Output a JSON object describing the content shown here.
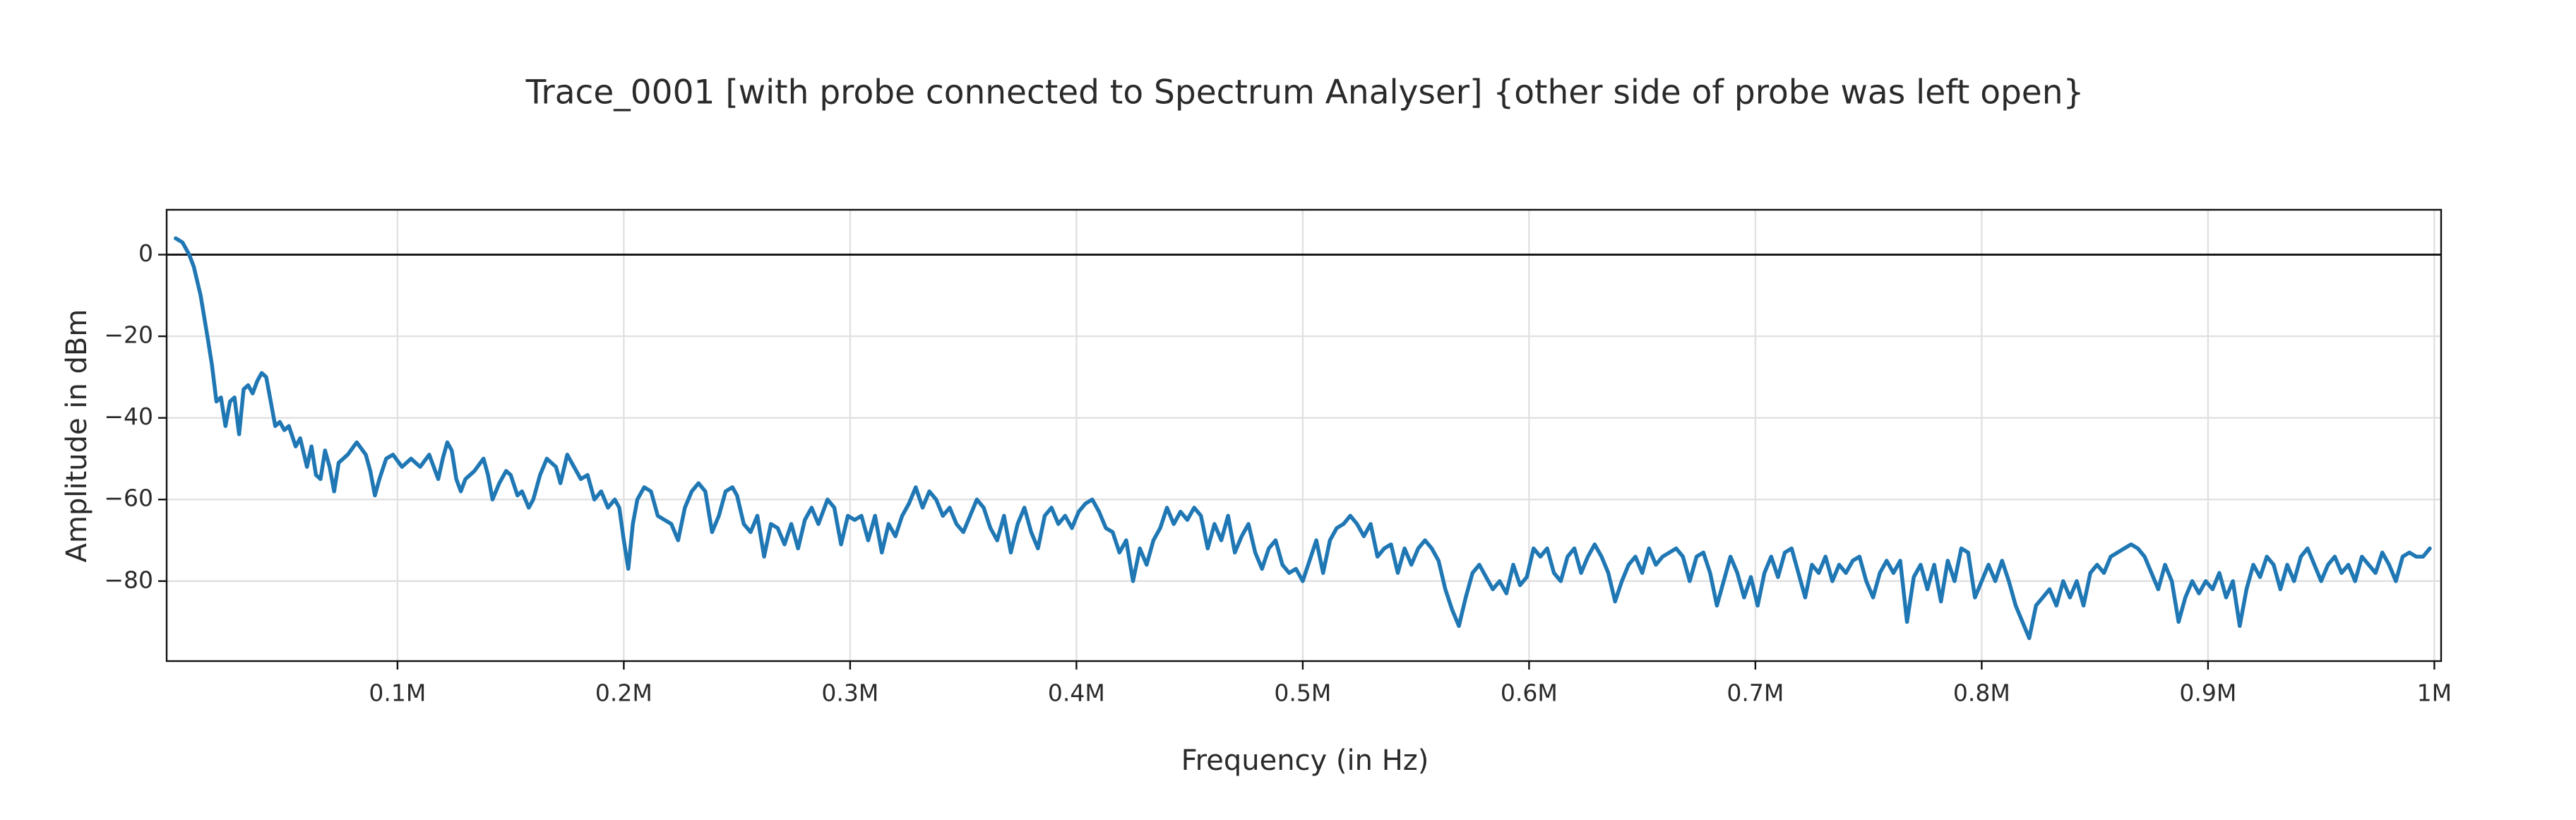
{
  "chart_data": {
    "type": "line",
    "title": "Trace_0001 [with probe connected to Spectrum Analyser] {other side of probe was left open}",
    "x_label": "Frequency (in Hz)",
    "y_label": "Amplitude in dBm",
    "xlim": [
      -2000,
      1003000
    ],
    "ylim": [
      -99.6,
      11
    ],
    "xticks": [
      {
        "value": 100000,
        "label": "0.1M"
      },
      {
        "value": 200000,
        "label": "0.2M"
      },
      {
        "value": 300000,
        "label": "0.3M"
      },
      {
        "value": 400000,
        "label": "0.4M"
      },
      {
        "value": 500000,
        "label": "0.5M"
      },
      {
        "value": 600000,
        "label": "0.6M"
      },
      {
        "value": 700000,
        "label": "0.7M"
      },
      {
        "value": 800000,
        "label": "0.8M"
      },
      {
        "value": 900000,
        "label": "0.9M"
      },
      {
        "value": 1000000,
        "label": "1M"
      }
    ],
    "yticks": [
      {
        "value": -80,
        "label": "−80"
      },
      {
        "value": -60,
        "label": "−60"
      },
      {
        "value": -40,
        "label": "−40"
      },
      {
        "value": -20,
        "label": "−20"
      },
      0
    ],
    "grid": true,
    "zeroline": true,
    "series": [
      {
        "color": "#1f77b4",
        "x": [
          2000,
          5000,
          8000,
          10000,
          13000,
          16000,
          18000,
          20000,
          22000,
          24000,
          26000,
          28000,
          30000,
          32000,
          34000,
          36000,
          38000,
          40000,
          42000,
          44000,
          46000,
          48000,
          50000,
          52000,
          55000,
          57000,
          60000,
          62000,
          64000,
          66000,
          68000,
          70000,
          72000,
          74000,
          78000,
          82000,
          86000,
          88000,
          90000,
          92000,
          95000,
          98000,
          102000,
          106000,
          110000,
          114000,
          118000,
          120000,
          122000,
          124000,
          126000,
          128000,
          130000,
          134000,
          138000,
          140000,
          142000,
          145000,
          148000,
          150000,
          153000,
          155000,
          158000,
          160000,
          163000,
          166000,
          170000,
          172000,
          175000,
          178000,
          181000,
          184000,
          187000,
          190000,
          193000,
          196000,
          198000,
          200000,
          202000,
          204000,
          206000,
          209000,
          212000,
          215000,
          218000,
          221000,
          224000,
          227000,
          230000,
          233000,
          236000,
          239000,
          242000,
          245000,
          248000,
          250000,
          253000,
          256000,
          259000,
          262000,
          265000,
          268000,
          271000,
          274000,
          277000,
          280000,
          283000,
          286000,
          290000,
          293000,
          296000,
          299000,
          302000,
          305000,
          308000,
          311000,
          314000,
          317000,
          320000,
          323000,
          326000,
          329000,
          332000,
          335000,
          338000,
          341000,
          344000,
          347000,
          350000,
          353000,
          356000,
          359000,
          362000,
          365000,
          368000,
          371000,
          374000,
          377000,
          380000,
          383000,
          386000,
          389000,
          392000,
          395000,
          398000,
          401000,
          404000,
          407000,
          410000,
          413000,
          416000,
          419000,
          422000,
          425000,
          428000,
          431000,
          434000,
          437000,
          440000,
          443000,
          446000,
          449000,
          452000,
          455000,
          458000,
          461000,
          464000,
          467000,
          470000,
          473000,
          476000,
          479000,
          482000,
          485000,
          488000,
          491000,
          494000,
          497000,
          500000,
          503000,
          506000,
          509000,
          512000,
          515000,
          518000,
          521000,
          524000,
          527000,
          530000,
          533000,
          536000,
          539000,
          542000,
          545000,
          548000,
          551000,
          554000,
          557000,
          560000,
          563000,
          566000,
          569000,
          572000,
          575000,
          578000,
          581000,
          584000,
          587000,
          590000,
          593000,
          596000,
          599000,
          602000,
          605000,
          608000,
          611000,
          614000,
          617000,
          620000,
          623000,
          626000,
          629000,
          632000,
          635000,
          638000,
          641000,
          644000,
          647000,
          650000,
          653000,
          656000,
          659000,
          662000,
          665000,
          668000,
          671000,
          674000,
          677000,
          680000,
          683000,
          686000,
          689000,
          692000,
          695000,
          698000,
          701000,
          704000,
          707000,
          710000,
          713000,
          716000,
          719000,
          722000,
          725000,
          728000,
          731000,
          734000,
          737000,
          740000,
          743000,
          746000,
          749000,
          752000,
          755000,
          758000,
          761000,
          764000,
          767000,
          770000,
          773000,
          776000,
          779000,
          782000,
          785000,
          788000,
          791000,
          794000,
          797000,
          800000,
          803000,
          806000,
          809000,
          812000,
          815000,
          818000,
          821000,
          824000,
          827000,
          830000,
          833000,
          836000,
          839000,
          842000,
          845000,
          848000,
          851000,
          854000,
          857000,
          860000,
          863000,
          866000,
          869000,
          872000,
          875000,
          878000,
          881000,
          884000,
          887000,
          890000,
          893000,
          896000,
          899000,
          902000,
          905000,
          908000,
          911000,
          914000,
          917000,
          920000,
          923000,
          926000,
          929000,
          932000,
          935000,
          938000,
          941000,
          944000,
          947000,
          950000,
          953000,
          956000,
          959000,
          962000,
          965000,
          968000,
          971000,
          974000,
          977000,
          980000,
          983000,
          986000,
          989000,
          992000,
          995000,
          998000
        ],
        "values": [
          4,
          3,
          0,
          -3,
          -10,
          -20,
          -27,
          -36,
          -35,
          -42,
          -36,
          -35,
          -44,
          -33,
          -32,
          -34,
          -31,
          -29,
          -30,
          -36,
          -42,
          -41,
          -43,
          -42,
          -47,
          -45,
          -52,
          -47,
          -54,
          -55,
          -48,
          -52,
          -58,
          -51,
          -49,
          -46,
          -49,
          -53,
          -59,
          -55,
          -50,
          -49,
          -52,
          -50,
          -52,
          -49,
          -55,
          -50,
          -46,
          -48,
          -55,
          -58,
          -55,
          -53,
          -50,
          -54,
          -60,
          -56,
          -53,
          -54,
          -59,
          -58,
          -62,
          -60,
          -54,
          -50,
          -52,
          -56,
          -49,
          -52,
          -55,
          -54,
          -60,
          -58,
          -62,
          -60,
          -62,
          -70,
          -77,
          -66,
          -60,
          -57,
          -58,
          -64,
          -65,
          -66,
          -70,
          -62,
          -58,
          -56,
          -58,
          -68,
          -64,
          -58,
          -57,
          -59,
          -66,
          -68,
          -64,
          -74,
          -66,
          -67,
          -71,
          -66,
          -72,
          -65,
          -62,
          -66,
          -60,
          -62,
          -71,
          -64,
          -65,
          -64,
          -70,
          -64,
          -73,
          -66,
          -69,
          -64,
          -61,
          -57,
          -62,
          -58,
          -60,
          -64,
          -62,
          -66,
          -68,
          -64,
          -60,
          -62,
          -67,
          -70,
          -64,
          -73,
          -66,
          -62,
          -68,
          -72,
          -64,
          -62,
          -66,
          -64,
          -67,
          -63,
          -61,
          -60,
          -63,
          -67,
          -68,
          -73,
          -70,
          -80,
          -72,
          -76,
          -70,
          -67,
          -62,
          -66,
          -63,
          -65,
          -62,
          -64,
          -72,
          -66,
          -70,
          -64,
          -73,
          -69,
          -66,
          -73,
          -77,
          -72,
          -70,
          -76,
          -78,
          -77,
          -80,
          -75,
          -70,
          -78,
          -70,
          -67,
          -66,
          -64,
          -66,
          -69,
          -66,
          -74,
          -72,
          -71,
          -78,
          -72,
          -76,
          -72,
          -70,
          -72,
          -75,
          -82,
          -87,
          -91,
          -84,
          -78,
          -76,
          -79,
          -82,
          -80,
          -83,
          -76,
          -81,
          -79,
          -72,
          -74,
          -72,
          -78,
          -80,
          -74,
          -72,
          -78,
          -74,
          -71,
          -74,
          -78,
          -85,
          -80,
          -76,
          -74,
          -78,
          -72,
          -76,
          -74,
          -73,
          -72,
          -74,
          -80,
          -74,
          -73,
          -78,
          -86,
          -80,
          -74,
          -78,
          -84,
          -79,
          -86,
          -78,
          -74,
          -79,
          -73,
          -72,
          -78,
          -84,
          -76,
          -78,
          -74,
          -80,
          -76,
          -78,
          -75,
          -74,
          -80,
          -84,
          -78,
          -75,
          -78,
          -75,
          -90,
          -79,
          -76,
          -82,
          -76,
          -85,
          -75,
          -80,
          -72,
          -73,
          -84,
          -80,
          -76,
          -80,
          -75,
          -80,
          -86,
          -90,
          -94,
          -86,
          -84,
          -82,
          -86,
          -80,
          -84,
          -80,
          -86,
          -78,
          -76,
          -78,
          -74,
          -73,
          -72,
          -71,
          -72,
          -74,
          -78,
          -82,
          -76,
          -80,
          -90,
          -84,
          -80,
          -83,
          -80,
          -82,
          -78,
          -84,
          -80,
          -91,
          -82,
          -76,
          -79,
          -74,
          -76,
          -82,
          -76,
          -80,
          -74,
          -72,
          -76,
          -80,
          -76,
          -74,
          -78,
          -76,
          -80,
          -74,
          -76,
          -78,
          -73,
          -76,
          -80,
          -74,
          -73,
          -74,
          -74,
          -72
        ]
      }
    ]
  }
}
